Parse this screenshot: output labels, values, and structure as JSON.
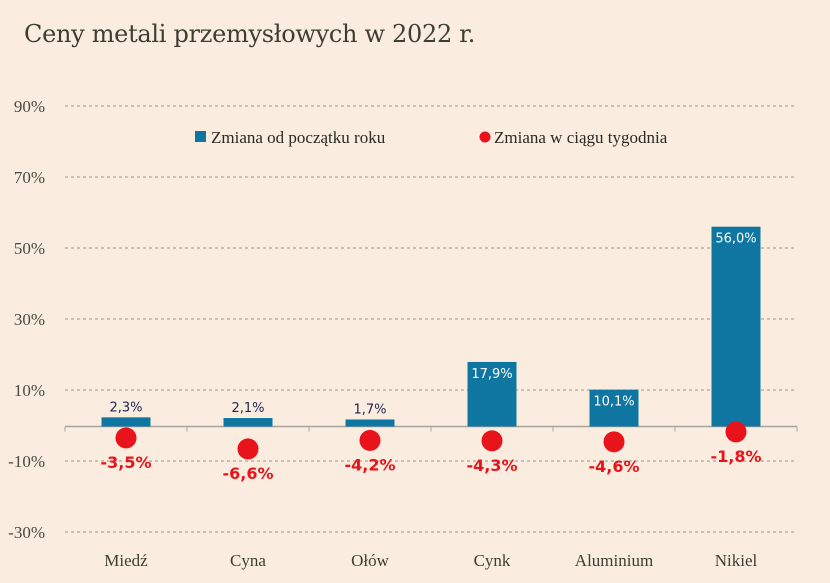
{
  "chart_data": {
    "type": "bar",
    "title": "Ceny metali przemysłowych w 2022 r.",
    "xlabel": "",
    "ylabel": "",
    "categories": [
      "Miedź",
      "Cyna",
      "Ołów",
      "Cynk",
      "Aluminium",
      "Nikiel"
    ],
    "series": [
      {
        "name": "Zmiana od początku roku",
        "kind": "bar",
        "color": "#0e76a0",
        "values": [
          2.3,
          2.1,
          1.7,
          17.9,
          10.1,
          56.0
        ],
        "labels": [
          "2,3%",
          "2,1%",
          "1,7%",
          "17,9%",
          "10,1%",
          "56,0%"
        ]
      },
      {
        "name": "Zmiana w ciągu tygodnia",
        "kind": "dot",
        "color": "#e8131b",
        "values": [
          -3.5,
          -6.6,
          -4.2,
          -4.3,
          -4.6,
          -1.8
        ],
        "labels": [
          "-3,5%",
          "-6,6%",
          "-4,2%",
          "-4,3%",
          "-4,6%",
          "-1,8%"
        ]
      }
    ],
    "yticks": [
      90,
      70,
      50,
      30,
      10,
      -10,
      -30
    ],
    "ytick_labels": [
      "90%",
      "70%",
      "50%",
      "30%",
      "10%",
      "-10%",
      "-30%"
    ],
    "ylim": [
      -30,
      90
    ],
    "grid": true,
    "legend": "top-center"
  },
  "colors": {
    "background": "#faede0",
    "bar": "#0e76a0",
    "dot": "#e8131b",
    "bar_label_dark": "#1d2450",
    "bar_label_light": "#ffffff"
  }
}
